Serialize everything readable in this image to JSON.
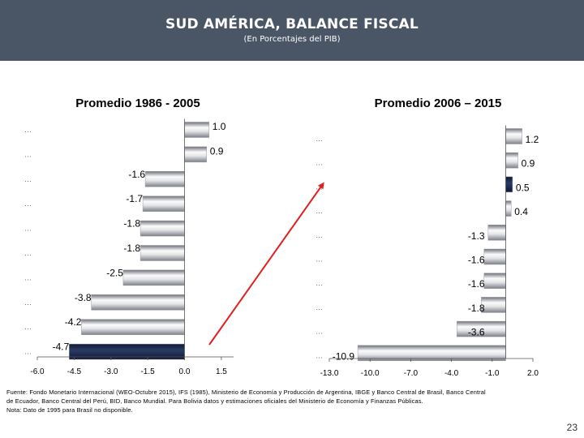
{
  "header": {
    "title": "SUD AMÉRICA, BALANCE FISCAL",
    "subtitle": "(En Porcentajes del PIB)"
  },
  "chart_data": [
    {
      "type": "bar",
      "orientation": "horizontal",
      "title": "Promedio 1986 - 2005",
      "categories": [
        "…",
        "…",
        "…",
        "…",
        "…",
        "…",
        "…",
        "…",
        "…",
        "…"
      ],
      "values": [
        1.0,
        0.9,
        -1.6,
        -1.7,
        -1.8,
        -1.8,
        -2.5,
        -3.8,
        -4.2,
        -4.7
      ],
      "value_labels": [
        "1.0",
        "0.9",
        "-1.6",
        "-1.7",
        "-1.8",
        "-1.8",
        "-2.5",
        "-3.8",
        "-4.2",
        "-4.7"
      ],
      "highlight_index": 9,
      "xlim": [
        -6.0,
        2.0
      ],
      "xticks": [
        -6.0,
        -4.5,
        -3.0,
        -1.5,
        0.0,
        1.5
      ],
      "xtick_labels": [
        "-6.0",
        "-4.5",
        "-3.0",
        "-1.5",
        "0.0",
        "1.5"
      ]
    },
    {
      "type": "bar",
      "orientation": "horizontal",
      "title": "Promedio 2006 – 2015",
      "categories": [
        "…",
        "…",
        "…",
        "…",
        "…",
        "…",
        "…",
        "…",
        "…",
        "…"
      ],
      "values": [
        1.2,
        0.9,
        0.5,
        0.4,
        -1.3,
        -1.6,
        -1.6,
        -1.8,
        -3.6,
        -10.9
      ],
      "value_labels": [
        "1.2",
        "0.9",
        "0.5",
        "0.4",
        "-1.3",
        "-1.6",
        "-1.6",
        "-1.8",
        "-3.6",
        "-10.9"
      ],
      "highlight_index": 2,
      "xlim": [
        -13.0,
        2.0
      ],
      "xticks": [
        -13.0,
        -10.0,
        -7.0,
        -4.0,
        -1.0,
        2.0
      ],
      "xtick_labels": [
        "-13.0",
        "-10.0",
        "-7.0",
        "-4.0",
        "-1.0",
        "2.0"
      ]
    }
  ],
  "colors": {
    "header_bg": "#4a5566",
    "bar_highlight": "#1c2b4f",
    "bar_gradient_light": "#fafafa",
    "bar_gradient_dark": "#8c8f98",
    "arrow": "#e02020"
  },
  "footnote": {
    "line1": "Fuente: Fondo Monetario Internacional (WEO-Octubre 2015), IFS (1985), Ministerio de Economía y Producción de Argentina, IBGE y Banco Central de Brasil, Banco Central",
    "line2": "de Ecuador, Banco Central del Perú, BID, Banco Mundial. Para Bolivia datos y estimaciones oficiales del Ministerio de Economía y Finanzas Públicas.",
    "line3": "Nota: Dato de 1995 para Brasil no disponible."
  },
  "page_number": "23"
}
